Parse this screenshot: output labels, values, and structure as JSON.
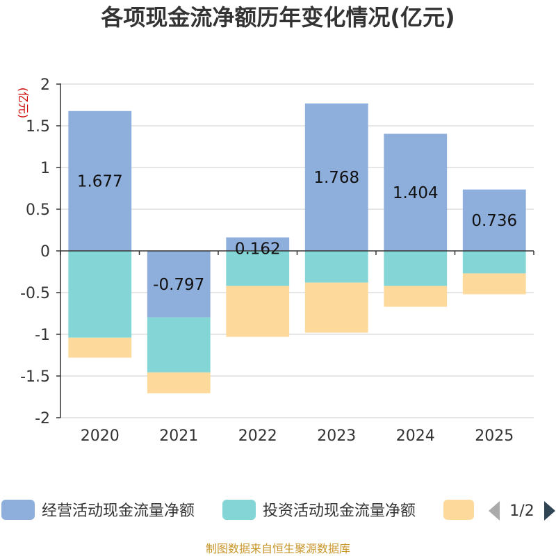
{
  "chart_data": {
    "type": "bar",
    "stacked": true,
    "title": "各项现金流净额历年变化情况(亿元)",
    "ylabel": "(亿元)",
    "categories": [
      "2020",
      "2021",
      "2022",
      "2023",
      "2024",
      "2025"
    ],
    "ylim": [
      -2,
      2
    ],
    "yticks": [
      2,
      1.5,
      1,
      0.5,
      0,
      -0.5,
      -1,
      -1.5,
      -2
    ],
    "ytick_labels": [
      "2",
      "1.5",
      "1",
      "0.5",
      "0",
      "-0.5",
      "-1",
      "-1.5",
      "-2"
    ],
    "series": [
      {
        "name": "经营活动现金流量净额",
        "color": "#8eaedb",
        "values": [
          1.677,
          -0.797,
          0.162,
          1.768,
          1.404,
          0.736
        ],
        "labels": [
          "1.677",
          "-0.797",
          "0.162",
          "1.768",
          "1.404",
          "0.736"
        ]
      },
      {
        "name": "投资活动现金流量净额",
        "color": "#84d6d6",
        "values": [
          -1.04,
          -0.66,
          -0.42,
          -0.38,
          -0.42,
          -0.27
        ]
      },
      {
        "name": "",
        "color": "#fdd99b",
        "values": [
          -0.24,
          -0.25,
          -0.61,
          -0.6,
          -0.25,
          -0.25
        ]
      }
    ],
    "grid": true,
    "legend": "bottom"
  },
  "legend": {
    "items": [
      "经营活动现金流量净额",
      "投资活动现金流量净额",
      ""
    ],
    "page": "1/2"
  },
  "footer": "制图数据来自恒生聚源数据库"
}
